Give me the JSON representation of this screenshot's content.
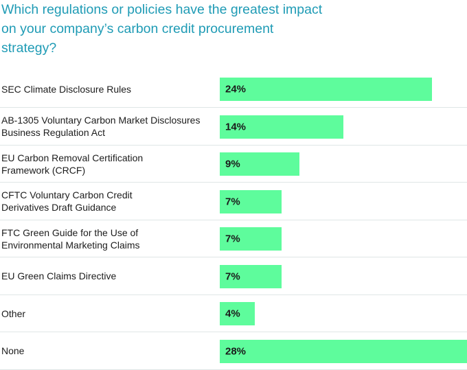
{
  "chart_data": {
    "type": "bar",
    "orientation": "horizontal",
    "title": "Which regulations or policies have the greatest impact on your company’s carbon credit procurement strategy?",
    "categories": [
      "SEC Climate Disclosure Rules",
      "AB-1305 Voluntary Carbon Market Disclosures Business Regulation Act",
      "EU Carbon Removal Certification Framework (CRCF)",
      "CFTC Voluntary Carbon Credit Derivatives Draft Guidance",
      "FTC Green Guide for the Use of Environmental Marketing Claims",
      "EU Green Claims Directive",
      "Other",
      "None"
    ],
    "values": [
      24,
      14,
      9,
      7,
      7,
      7,
      4,
      28
    ],
    "value_labels": [
      "24%",
      "14%",
      "9%",
      "7%",
      "7%",
      "7%",
      "4%",
      "28%"
    ],
    "unit": "%",
    "xlim": [
      0,
      28
    ],
    "grid": false,
    "legend": "none",
    "bar_color": "#5efc9c",
    "title_color": "#1f9bb5"
  }
}
